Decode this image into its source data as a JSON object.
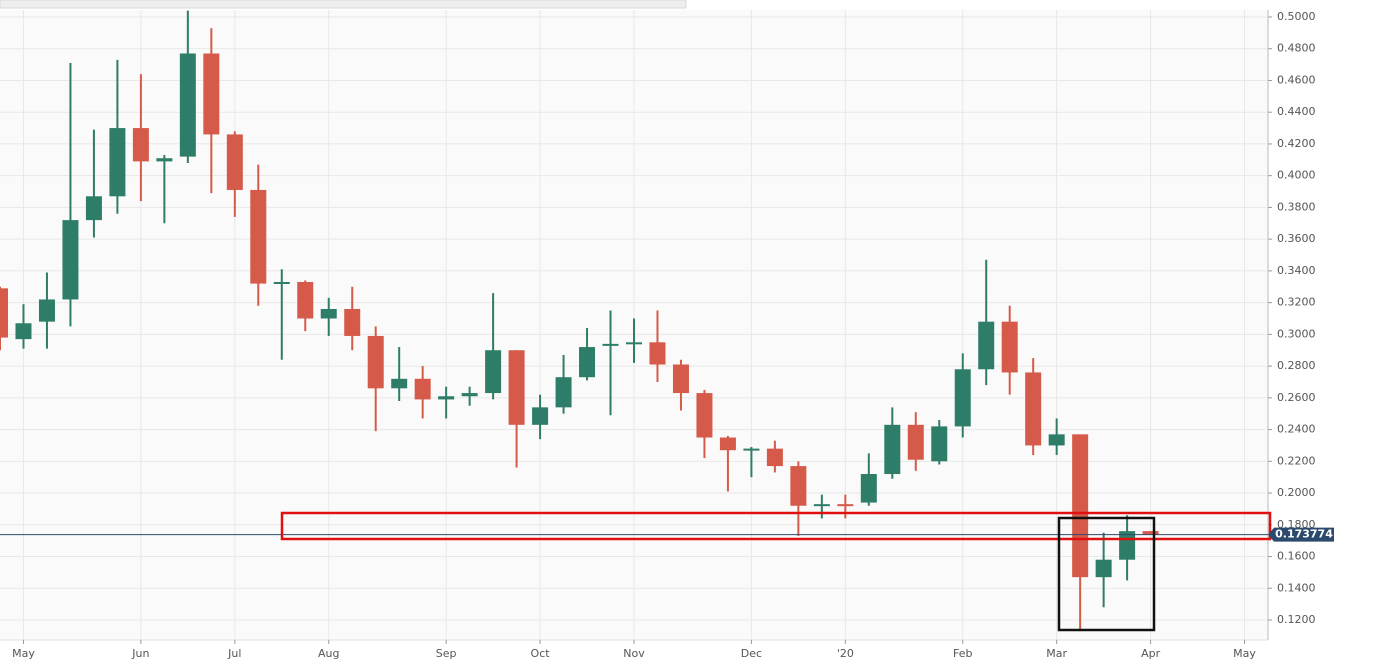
{
  "chart_data": {
    "type": "candlestick",
    "x": [
      0,
      1,
      2,
      3,
      4,
      5,
      6,
      7,
      8,
      9,
      10,
      11,
      12,
      13,
      14,
      15,
      16,
      17,
      18,
      19,
      20,
      21,
      22,
      23,
      24,
      25,
      26,
      27,
      28,
      29,
      30,
      31,
      32,
      33,
      34,
      35,
      36,
      37,
      38,
      39,
      40,
      41,
      42,
      43,
      44,
      45,
      46,
      47,
      48,
      49
    ],
    "open": [
      0.329,
      0.297,
      0.308,
      0.322,
      0.372,
      0.387,
      0.43,
      0.409,
      0.412,
      0.477,
      0.426,
      0.391,
      0.332,
      0.333,
      0.31,
      0.316,
      0.299,
      0.266,
      0.272,
      0.259,
      0.261,
      0.263,
      0.29,
      0.243,
      0.254,
      0.273,
      0.293,
      0.294,
      0.295,
      0.281,
      0.263,
      0.235,
      0.227,
      0.228,
      0.217,
      0.192,
      0.193,
      0.194,
      0.212,
      0.243,
      0.22,
      0.242,
      0.278,
      0.308,
      0.276,
      0.23,
      0.237,
      0.147,
      0.158,
      0.176
    ],
    "high": [
      0.33,
      0.319,
      0.339,
      0.471,
      0.429,
      0.473,
      0.464,
      0.413,
      0.504,
      0.493,
      0.428,
      0.407,
      0.341,
      0.334,
      0.323,
      0.33,
      0.305,
      0.292,
      0.28,
      0.267,
      0.267,
      0.326,
      0.29,
      0.262,
      0.287,
      0.304,
      0.315,
      0.31,
      0.315,
      0.284,
      0.265,
      0.236,
      0.229,
      0.233,
      0.22,
      0.199,
      0.199,
      0.225,
      0.254,
      0.251,
      0.246,
      0.288,
      0.347,
      0.318,
      0.285,
      0.247,
      0.237,
      0.175,
      0.186,
      0.176
    ],
    "low": [
      0.29,
      0.291,
      0.291,
      0.305,
      0.361,
      0.376,
      0.384,
      0.37,
      0.408,
      0.389,
      0.374,
      0.318,
      0.284,
      0.302,
      0.299,
      0.29,
      0.239,
      0.258,
      0.247,
      0.247,
      0.255,
      0.259,
      0.216,
      0.234,
      0.25,
      0.271,
      0.249,
      0.282,
      0.27,
      0.252,
      0.222,
      0.201,
      0.21,
      0.213,
      0.173,
      0.184,
      0.184,
      0.192,
      0.209,
      0.214,
      0.218,
      0.235,
      0.268,
      0.262,
      0.224,
      0.224,
      0.113,
      0.128,
      0.145,
      0.174
    ],
    "close": [
      0.298,
      0.307,
      0.322,
      0.372,
      0.387,
      0.43,
      0.409,
      0.411,
      0.477,
      0.426,
      0.391,
      0.332,
      0.333,
      0.31,
      0.316,
      0.299,
      0.266,
      0.272,
      0.259,
      0.261,
      0.263,
      0.29,
      0.243,
      0.254,
      0.273,
      0.292,
      0.294,
      0.295,
      0.281,
      0.263,
      0.235,
      0.227,
      0.228,
      0.217,
      0.192,
      0.193,
      0.192,
      0.212,
      0.243,
      0.221,
      0.242,
      0.278,
      0.308,
      0.276,
      0.23,
      0.237,
      0.147,
      0.158,
      0.176,
      0.174
    ],
    "up_color": "#2e7d69",
    "down_color": "#d65a49",
    "last_price": 0.173774,
    "xlim": [
      0,
      54
    ],
    "xticks": [
      {
        "value": 1,
        "label": "May"
      },
      {
        "value": 6,
        "label": "Jun"
      },
      {
        "value": 10,
        "label": "Jul"
      },
      {
        "value": 14,
        "label": "Aug"
      },
      {
        "value": 19,
        "label": "Sep"
      },
      {
        "value": 23,
        "label": "Oct"
      },
      {
        "value": 27,
        "label": "Nov"
      },
      {
        "value": 32,
        "label": "Dec"
      },
      {
        "value": 36,
        "label": "'20"
      },
      {
        "value": 41,
        "label": "Feb"
      },
      {
        "value": 45,
        "label": "Mar"
      },
      {
        "value": 49,
        "label": "Apr"
      },
      {
        "value": 53,
        "label": "May"
      }
    ],
    "ylim": [
      0.1074,
      0.5044
    ],
    "yticks": [
      {
        "value": 0.12,
        "label": "0.1200"
      },
      {
        "value": 0.14,
        "label": "0.1400"
      },
      {
        "value": 0.16,
        "label": "0.1600"
      },
      {
        "value": 0.18,
        "label": "0.1800"
      },
      {
        "value": 0.2,
        "label": "0.2000"
      },
      {
        "value": 0.22,
        "label": "0.2200"
      },
      {
        "value": 0.24,
        "label": "0.2400"
      },
      {
        "value": 0.26,
        "label": "0.2600"
      },
      {
        "value": 0.28,
        "label": "0.2800"
      },
      {
        "value": 0.3,
        "label": "0.3000"
      },
      {
        "value": 0.32,
        "label": "0.3200"
      },
      {
        "value": 0.34,
        "label": "0.3400"
      },
      {
        "value": 0.36,
        "label": "0.3600"
      },
      {
        "value": 0.38,
        "label": "0.3800"
      },
      {
        "value": 0.4,
        "label": "0.4000"
      },
      {
        "value": 0.42,
        "label": "0.4200"
      },
      {
        "value": 0.44,
        "label": "0.4400"
      },
      {
        "value": 0.46,
        "label": "0.4600"
      },
      {
        "value": 0.48,
        "label": "0.4800"
      },
      {
        "value": 0.5,
        "label": "0.5000"
      }
    ],
    "grid": true
  }
}
